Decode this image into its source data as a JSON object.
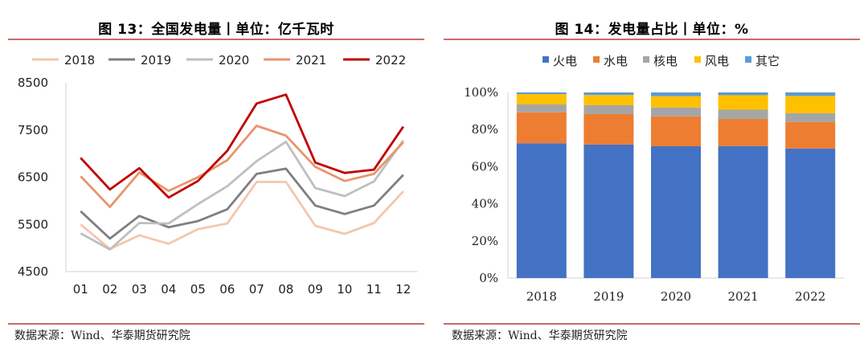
{
  "left_panel": {
    "title": "图 13：全国发电量丨单位：亿千瓦时",
    "source": "数据来源：Wind、华泰期货研究院"
  },
  "right_panel": {
    "title": "图 14：发电量占比丨单位：%",
    "source": "数据来源：Wind、华泰期货研究院"
  },
  "chart_data": [
    {
      "type": "line",
      "x": [
        "01",
        "02",
        "03",
        "04",
        "05",
        "06",
        "07",
        "08",
        "09",
        "10",
        "11",
        "12"
      ],
      "ylim": [
        4500,
        8500
      ],
      "yticks": [
        "4500",
        "5500",
        "6500",
        "7500",
        "8500"
      ],
      "legend_position": "top",
      "series": [
        {
          "name": "2018",
          "color": "#f4c6ad",
          "values": [
            5500,
            4980,
            5270,
            5090,
            5400,
            5520,
            6400,
            6400,
            5470,
            5300,
            5530,
            6200
          ]
        },
        {
          "name": "2019",
          "color": "#7f7f7f",
          "values": [
            5780,
            5200,
            5680,
            5440,
            5570,
            5820,
            6570,
            6680,
            5900,
            5720,
            5900,
            6550
          ]
        },
        {
          "name": "2020",
          "color": "#bfbfbf",
          "values": [
            5310,
            4970,
            5530,
            5520,
            5930,
            6310,
            6840,
            7250,
            6270,
            6100,
            6410,
            7280
          ]
        },
        {
          "name": "2021",
          "color": "#e8946c",
          "values": [
            6520,
            5870,
            6600,
            6210,
            6500,
            6860,
            7590,
            7380,
            6720,
            6420,
            6570,
            7240
          ]
        },
        {
          "name": "2022",
          "color": "#c00000",
          "values": [
            6910,
            6240,
            6690,
            6070,
            6420,
            7060,
            8060,
            8250,
            6810,
            6590,
            6660,
            7570
          ]
        }
      ]
    },
    {
      "type": "bar",
      "stacked": true,
      "categories": [
        "2018",
        "2019",
        "2020",
        "2021",
        "2022"
      ],
      "ylim": [
        0,
        100
      ],
      "yticks": [
        "0%",
        "20%",
        "40%",
        "60%",
        "80%",
        "100%"
      ],
      "legend_position": "top",
      "series": [
        {
          "name": "火电",
          "color": "#4472c4",
          "values": [
            72.6,
            71.9,
            71.0,
            71.1,
            69.8
          ]
        },
        {
          "name": "水电",
          "color": "#ed7d31",
          "values": [
            16.7,
            16.4,
            16.1,
            14.6,
            14.3
          ]
        },
        {
          "name": "核电",
          "color": "#a5a5a5",
          "values": [
            4.2,
            4.8,
            4.8,
            5.0,
            4.7
          ]
        },
        {
          "name": "风电",
          "color": "#ffc000",
          "values": [
            5.6,
            5.5,
            6.1,
            7.8,
            9.3
          ]
        },
        {
          "name": "其它",
          "color": "#5b9bd5",
          "values": [
            0.9,
            1.4,
            2.0,
            1.5,
            1.9
          ]
        }
      ]
    }
  ]
}
